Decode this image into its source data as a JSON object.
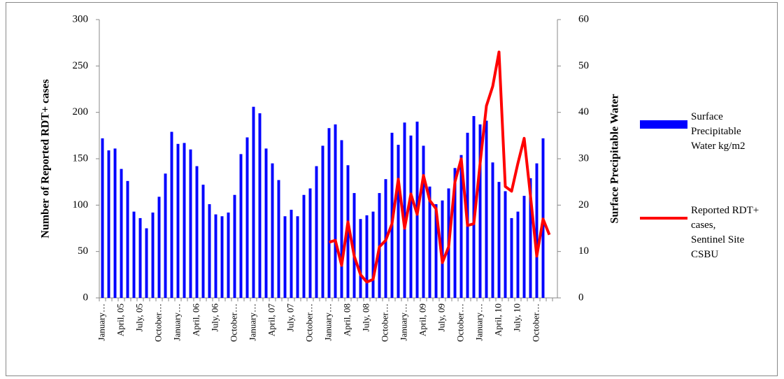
{
  "chart_data": {
    "type": "bar_line",
    "y_label": "Number of Reported RDT+ cases",
    "y2_label": "Surface Precipitable Water",
    "categories": [
      "January…",
      null,
      null,
      "April, 05",
      null,
      null,
      "July, 05",
      null,
      null,
      "October…",
      null,
      null,
      "January…",
      null,
      null,
      "April, 06",
      null,
      null,
      "July, 06",
      null,
      null,
      "October…",
      null,
      null,
      "January…",
      null,
      null,
      "April, 07",
      null,
      null,
      "July, 07",
      null,
      null,
      "October…",
      null,
      null,
      "January…",
      null,
      null,
      "April, 08",
      null,
      null,
      "July, 08",
      null,
      null,
      "October…",
      null,
      null,
      "January…",
      null,
      null,
      "April, 09",
      null,
      null,
      "July, 09",
      null,
      null,
      "October…",
      null,
      null,
      "January…",
      null,
      null,
      "April, 10",
      null,
      null,
      "July, 10",
      null,
      null,
      "October…",
      null,
      null
    ],
    "ylim": [
      0,
      300
    ],
    "yticks": [
      0,
      50,
      100,
      150,
      200,
      250,
      300
    ],
    "y2lim": [
      0,
      60
    ],
    "y2ticks": [
      0,
      10,
      20,
      30,
      40,
      50,
      60
    ],
    "series": [
      {
        "name": "Surface Precipitable Water kg/m2",
        "color": "#0000ff",
        "axis": "y2",
        "kind": "bar",
        "values": [
          34.4,
          31.8,
          32.2,
          27.8,
          25.2,
          18.6,
          17.2,
          15,
          18.4,
          21.8,
          26.8,
          35.8,
          33.2,
          33.4,
          32,
          28.4,
          24.4,
          20.2,
          18,
          17.6,
          18.4,
          22.2,
          31,
          34.6,
          41.2,
          39.8,
          32.2,
          29,
          25.4,
          17.6,
          19,
          17.6,
          22.2,
          23.6,
          28.4,
          32.8,
          36.6,
          37.4,
          34,
          28.6,
          22.6,
          17,
          17.8,
          18.6,
          22.6,
          25.6,
          35.6,
          33,
          37.8,
          35,
          38,
          32.8,
          24,
          20.2,
          21,
          23.6,
          28,
          30.8,
          35.6,
          39.2,
          37.4,
          38.2,
          29.2,
          25,
          23,
          17.2,
          18.6,
          22,
          25.8,
          29,
          34.4,
          null
        ]
      },
      {
        "name": "Reported RDT+ cases, Sentinel Site CSBU",
        "color": "#ff0000",
        "kind": "line",
        "values": [
          null,
          null,
          null,
          null,
          null,
          null,
          null,
          null,
          null,
          null,
          null,
          null,
          null,
          null,
          null,
          null,
          null,
          null,
          null,
          null,
          null,
          null,
          null,
          null,
          null,
          null,
          null,
          null,
          null,
          null,
          null,
          null,
          null,
          null,
          null,
          null,
          60,
          62,
          35,
          82,
          45,
          25,
          17,
          20,
          55,
          62,
          80,
          128,
          75,
          112,
          90,
          132,
          105,
          96,
          38,
          55,
          125,
          150,
          78,
          80,
          145,
          207,
          228,
          265,
          120,
          115,
          145,
          172,
          110,
          45,
          85,
          68
        ]
      }
    ]
  }
}
